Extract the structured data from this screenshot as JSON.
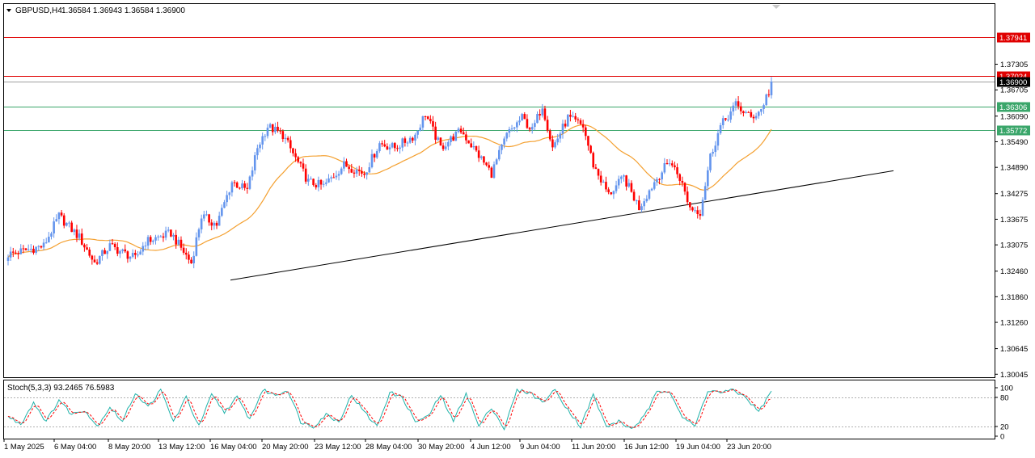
{
  "header": {
    "symbol": "GBPUSD,H4",
    "ohlc": "1.36584 1.36943 1.36584 1.36900",
    "menu_icon": "triangle-down-icon"
  },
  "indicator": {
    "label": "Stoch(5,3,3) 93.2465 76.5983",
    "main": 93.2465,
    "signal": 76.5983,
    "levels": [
      80,
      20
    ],
    "scale_labels": [
      "100",
      "80",
      "20",
      "0"
    ]
  },
  "colors": {
    "bull": "#6495ed",
    "bear": "#ff0000",
    "ma": "#f4a030",
    "resistance": "#e00000",
    "support": "#3aa66a",
    "trendline": "#000000",
    "stoch_main": "#20b2aa",
    "stoch_signal": "#ff0000"
  },
  "chart_data": {
    "type": "candlestick",
    "timeframe": "H4",
    "ylim": [
      1.29975,
      1.38715
    ],
    "price_labels": [
      "1.37305",
      "1.36705",
      "1.36090",
      "1.35490",
      "1.34890",
      "1.34275",
      "1.33675",
      "1.33075",
      "1.32460",
      "1.31860",
      "1.31260",
      "1.30645",
      "1.30045"
    ],
    "time_labels": [
      "1 May 2025",
      "6 May 04:00",
      "8 May 20:00",
      "13 May 12:00",
      "16 May 04:00",
      "20 May 20:00",
      "23 May 12:00",
      "28 May 04:00",
      "30 May 20:00",
      "4 Jun 12:00",
      "9 Jun 04:00",
      "11 Jun 20:00",
      "16 Jun 12:00",
      "19 Jun 04:00",
      "23 Jun 20:00"
    ],
    "horizontal_lines": [
      {
        "price": 1.37941,
        "label": "1.37941",
        "kind": "resistance"
      },
      {
        "price": 1.37024,
        "label": "1.37024",
        "kind": "resistance"
      },
      {
        "price": 1.36306,
        "label": "1.36306",
        "kind": "support"
      },
      {
        "price": 1.35772,
        "label": "1.35772",
        "kind": "support"
      }
    ],
    "current_price": {
      "price": 1.369,
      "label": "1.36900"
    },
    "trendline": {
      "from": {
        "bar": 0,
        "price": 1.3225
      },
      "to": {
        "bar": 1,
        "price": 1.3481
      }
    },
    "waypoints": [
      [
        0,
        1.3285
      ],
      [
        14,
        1.3305
      ],
      [
        20,
        1.3375
      ],
      [
        28,
        1.3325
      ],
      [
        34,
        1.3265
      ],
      [
        40,
        1.3305
      ],
      [
        50,
        1.3275
      ],
      [
        54,
        1.3315
      ],
      [
        64,
        1.3335
      ],
      [
        72,
        1.3265
      ],
      [
        76,
        1.3375
      ],
      [
        82,
        1.3355
      ],
      [
        88,
        1.3455
      ],
      [
        94,
        1.3435
      ],
      [
        98,
        1.3535
      ],
      [
        102,
        1.3585
      ],
      [
        108,
        1.3565
      ],
      [
        118,
        1.3455
      ],
      [
        124,
        1.3445
      ],
      [
        132,
        1.3495
      ],
      [
        140,
        1.3475
      ],
      [
        146,
        1.3545
      ],
      [
        152,
        1.3535
      ],
      [
        160,
        1.3565
      ],
      [
        164,
        1.3615
      ],
      [
        170,
        1.3535
      ],
      [
        178,
        1.3575
      ],
      [
        184,
        1.3525
      ],
      [
        190,
        1.3475
      ],
      [
        196,
        1.3565
      ],
      [
        202,
        1.3605
      ],
      [
        206,
        1.3575
      ],
      [
        210,
        1.3635
      ],
      [
        214,
        1.3535
      ],
      [
        220,
        1.3605
      ],
      [
        226,
        1.3585
      ],
      [
        230,
        1.3495
      ],
      [
        236,
        1.3425
      ],
      [
        242,
        1.3465
      ],
      [
        248,
        1.3395
      ],
      [
        254,
        1.3455
      ],
      [
        260,
        1.3505
      ],
      [
        264,
        1.3465
      ],
      [
        268,
        1.3395
      ],
      [
        272,
        1.3385
      ],
      [
        276,
        1.3515
      ],
      [
        280,
        1.3585
      ],
      [
        286,
        1.3635
      ],
      [
        292,
        1.3605
      ],
      [
        296,
        1.3625
      ],
      [
        300,
        1.3685
      ]
    ],
    "stoch_waypoints": [
      [
        0,
        40
      ],
      [
        5,
        25
      ],
      [
        10,
        70
      ],
      [
        15,
        30
      ],
      [
        20,
        75
      ],
      [
        25,
        45
      ],
      [
        30,
        55
      ],
      [
        35,
        20
      ],
      [
        40,
        60
      ],
      [
        45,
        30
      ],
      [
        50,
        90
      ],
      [
        55,
        60
      ],
      [
        60,
        95
      ],
      [
        65,
        30
      ],
      [
        70,
        80
      ],
      [
        75,
        20
      ],
      [
        80,
        85
      ],
      [
        85,
        50
      ],
      [
        90,
        80
      ],
      [
        95,
        35
      ],
      [
        100,
        95
      ],
      [
        105,
        85
      ],
      [
        110,
        95
      ],
      [
        115,
        30
      ],
      [
        120,
        20
      ],
      [
        125,
        45
      ],
      [
        130,
        30
      ],
      [
        135,
        85
      ],
      [
        140,
        50
      ],
      [
        145,
        20
      ],
      [
        150,
        90
      ],
      [
        155,
        80
      ],
      [
        160,
        30
      ],
      [
        165,
        40
      ],
      [
        170,
        85
      ],
      [
        175,
        30
      ],
      [
        180,
        90
      ],
      [
        185,
        20
      ],
      [
        190,
        60
      ],
      [
        195,
        15
      ],
      [
        200,
        95
      ],
      [
        205,
        90
      ],
      [
        210,
        70
      ],
      [
        215,
        95
      ],
      [
        220,
        55
      ],
      [
        225,
        20
      ],
      [
        230,
        85
      ],
      [
        235,
        20
      ],
      [
        240,
        30
      ],
      [
        245,
        15
      ],
      [
        250,
        40
      ],
      [
        255,
        90
      ],
      [
        260,
        95
      ],
      [
        265,
        40
      ],
      [
        270,
        20
      ],
      [
        275,
        95
      ],
      [
        280,
        90
      ],
      [
        285,
        95
      ],
      [
        290,
        80
      ],
      [
        295,
        50
      ],
      [
        300,
        93
      ]
    ]
  }
}
